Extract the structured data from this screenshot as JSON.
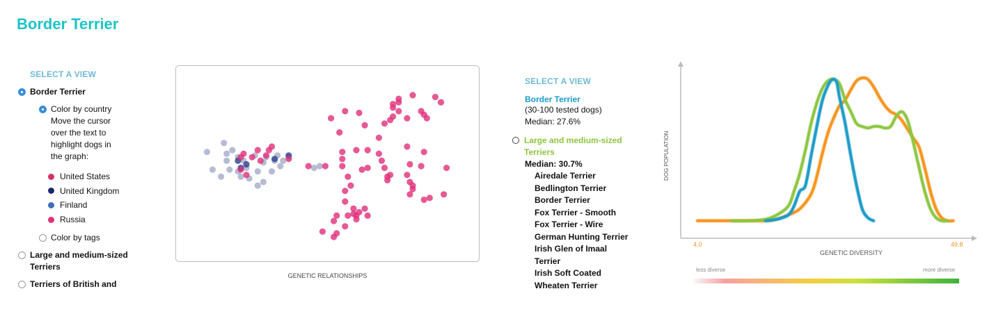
{
  "page_title": "Border Terrier",
  "left": {
    "select_label": "SELECT A VIEW",
    "selected_breed": "Border Terrier",
    "color_by_country": "Color by country",
    "hint": "Move the cursor over the text to highlight dogs in the graph:",
    "countries": [
      {
        "name": "United States",
        "color": "#d6336c"
      },
      {
        "name": "United Kingdom",
        "color": "#1b2a6b"
      },
      {
        "name": "Finland",
        "color": "#3f6fb6"
      },
      {
        "name": "Russia",
        "color": "#e0307a"
      }
    ],
    "color_by_tags": "Color by tags",
    "option_large_terriers": "Large and medium-sized Terriers",
    "option_british": "Terriers of British and"
  },
  "middle": {
    "select_label": "SELECT A VIEW",
    "breed": "Border Terrier",
    "tested": "(30-100 tested dogs)",
    "median": "Median: 27.6%",
    "group_name": "Large and medium-sized Terriers",
    "group_median": "Median: 30.7%",
    "group_breeds": [
      "Airedale Terrier",
      "Bedlington Terrier",
      "Border Terrier",
      "Fox Terrier - Smooth",
      "Fox Terrier - Wire",
      "German Hunting Terrier",
      "Irish Glen of Imaal",
      "Terrier",
      "Irish Soft Coated",
      "Wheaten Terrier"
    ]
  },
  "chart_data": [
    {
      "type": "scatter",
      "xlabel": "GENETIC RELATIONSHIPS",
      "xlim": [
        0,
        100
      ],
      "ylim": [
        0,
        100
      ],
      "colors": {
        "grey": "#aab0cc",
        "pink": "#e0307a",
        "darkblue": "#2d3f8a"
      },
      "points": [
        {
          "x": 7,
          "y": 57,
          "c": "grey"
        },
        {
          "x": 9,
          "y": 47,
          "c": "grey"
        },
        {
          "x": 13,
          "y": 62,
          "c": "grey"
        },
        {
          "x": 14,
          "y": 56,
          "c": "grey"
        },
        {
          "x": 15,
          "y": 47,
          "c": "grey"
        },
        {
          "x": 12,
          "y": 43,
          "c": "grey"
        },
        {
          "x": 16,
          "y": 58,
          "c": "grey"
        },
        {
          "x": 14,
          "y": 52,
          "c": "grey"
        },
        {
          "x": 18,
          "y": 54,
          "c": "grey"
        },
        {
          "x": 19,
          "y": 43,
          "c": "grey"
        },
        {
          "x": 21,
          "y": 48,
          "c": "grey"
        },
        {
          "x": 22,
          "y": 42,
          "c": "grey"
        },
        {
          "x": 18,
          "y": 46,
          "c": "grey"
        },
        {
          "x": 20,
          "y": 52,
          "c": "grey"
        },
        {
          "x": 24,
          "y": 55,
          "c": "grey"
        },
        {
          "x": 25,
          "y": 38,
          "c": "grey"
        },
        {
          "x": 27,
          "y": 40,
          "c": "grey"
        },
        {
          "x": 25,
          "y": 46,
          "c": "grey"
        },
        {
          "x": 27,
          "y": 51,
          "c": "grey"
        },
        {
          "x": 28,
          "y": 54,
          "c": "grey"
        },
        {
          "x": 30,
          "y": 46,
          "c": "grey"
        },
        {
          "x": 32,
          "y": 55,
          "c": "grey"
        },
        {
          "x": 34,
          "y": 52,
          "c": "grey"
        },
        {
          "x": 36,
          "y": 54,
          "c": "grey"
        },
        {
          "x": 33,
          "y": 49,
          "c": "grey"
        },
        {
          "x": 31,
          "y": 52,
          "c": "grey"
        },
        {
          "x": 47,
          "y": 49,
          "c": "grey"
        },
        {
          "x": 45,
          "y": 48,
          "c": "grey"
        },
        {
          "x": 18,
          "y": 52,
          "c": "darkblue"
        },
        {
          "x": 19,
          "y": 48,
          "c": "darkblue"
        },
        {
          "x": 21,
          "y": 50,
          "c": "darkblue"
        },
        {
          "x": 31,
          "y": 53,
          "c": "darkblue"
        },
        {
          "x": 36,
          "y": 55,
          "c": "darkblue"
        },
        {
          "x": 19,
          "y": 54,
          "c": "pink"
        },
        {
          "x": 20,
          "y": 56,
          "c": "pink"
        },
        {
          "x": 19,
          "y": 47,
          "c": "pink"
        },
        {
          "x": 23,
          "y": 54,
          "c": "pink"
        },
        {
          "x": 25,
          "y": 58,
          "c": "pink"
        },
        {
          "x": 28,
          "y": 55,
          "c": "pink"
        },
        {
          "x": 29,
          "y": 58,
          "c": "pink"
        },
        {
          "x": 30,
          "y": 60,
          "c": "pink"
        },
        {
          "x": 26,
          "y": 52,
          "c": "pink"
        },
        {
          "x": 21,
          "y": 44,
          "c": "pink"
        },
        {
          "x": 36,
          "y": 53,
          "c": "pink"
        },
        {
          "x": 43,
          "y": 49,
          "c": "pink"
        },
        {
          "x": 49,
          "y": 49,
          "c": "pink"
        },
        {
          "x": 51,
          "y": 76,
          "c": "pink"
        },
        {
          "x": 54,
          "y": 68,
          "c": "pink"
        },
        {
          "x": 56,
          "y": 80,
          "c": "pink"
        },
        {
          "x": 61,
          "y": 79,
          "c": "pink"
        },
        {
          "x": 63,
          "y": 72,
          "c": "pink"
        },
        {
          "x": 55,
          "y": 57,
          "c": "pink"
        },
        {
          "x": 55,
          "y": 53,
          "c": "pink"
        },
        {
          "x": 55,
          "y": 49,
          "c": "pink"
        },
        {
          "x": 57,
          "y": 43,
          "c": "pink"
        },
        {
          "x": 58,
          "y": 38,
          "c": "pink"
        },
        {
          "x": 56,
          "y": 35,
          "c": "pink"
        },
        {
          "x": 62,
          "y": 47,
          "c": "pink"
        },
        {
          "x": 64,
          "y": 48,
          "c": "pink"
        },
        {
          "x": 64,
          "y": 58,
          "c": "pink"
        },
        {
          "x": 60,
          "y": 58,
          "c": "pink"
        },
        {
          "x": 68,
          "y": 65,
          "c": "pink"
        },
        {
          "x": 68,
          "y": 56,
          "c": "pink"
        },
        {
          "x": 69,
          "y": 52,
          "c": "pink"
        },
        {
          "x": 70,
          "y": 48,
          "c": "pink"
        },
        {
          "x": 70,
          "y": 73,
          "c": "pink"
        },
        {
          "x": 72,
          "y": 75,
          "c": "pink"
        },
        {
          "x": 71,
          "y": 41,
          "c": "pink"
        },
        {
          "x": 71,
          "y": 43,
          "c": "pink"
        },
        {
          "x": 72,
          "y": 44,
          "c": "pink"
        },
        {
          "x": 73,
          "y": 77,
          "c": "pink"
        },
        {
          "x": 73,
          "y": 84,
          "c": "pink"
        },
        {
          "x": 73,
          "y": 82,
          "c": "pink"
        },
        {
          "x": 75,
          "y": 80,
          "c": "pink"
        },
        {
          "x": 75,
          "y": 85,
          "c": "pink"
        },
        {
          "x": 75,
          "y": 87,
          "c": "pink"
        },
        {
          "x": 78,
          "y": 76,
          "c": "pink"
        },
        {
          "x": 80,
          "y": 89,
          "c": "pink"
        },
        {
          "x": 84,
          "y": 78,
          "c": "pink"
        },
        {
          "x": 79,
          "y": 50,
          "c": "pink"
        },
        {
          "x": 78,
          "y": 60,
          "c": "pink"
        },
        {
          "x": 85,
          "y": 76,
          "c": "pink"
        },
        {
          "x": 80,
          "y": 38,
          "c": "pink"
        },
        {
          "x": 79,
          "y": 33,
          "c": "pink"
        },
        {
          "x": 78,
          "y": 44,
          "c": "pink"
        },
        {
          "x": 84,
          "y": 30,
          "c": "pink"
        },
        {
          "x": 79,
          "y": 40,
          "c": "pink"
        },
        {
          "x": 80,
          "y": 36,
          "c": "pink"
        },
        {
          "x": 83,
          "y": 49,
          "c": "pink"
        },
        {
          "x": 84,
          "y": 57,
          "c": "pink"
        },
        {
          "x": 86,
          "y": 31,
          "c": "pink"
        },
        {
          "x": 91,
          "y": 33,
          "c": "pink"
        },
        {
          "x": 92,
          "y": 48,
          "c": "pink"
        },
        {
          "x": 56,
          "y": 29,
          "c": "pink"
        },
        {
          "x": 59,
          "y": 25,
          "c": "pink"
        },
        {
          "x": 59,
          "y": 22,
          "c": "pink"
        },
        {
          "x": 60,
          "y": 21,
          "c": "pink"
        },
        {
          "x": 61,
          "y": 23,
          "c": "pink"
        },
        {
          "x": 57,
          "y": 21,
          "c": "pink"
        },
        {
          "x": 53,
          "y": 21,
          "c": "pink"
        },
        {
          "x": 52,
          "y": 18,
          "c": "pink"
        },
        {
          "x": 56,
          "y": 15,
          "c": "pink"
        },
        {
          "x": 53,
          "y": 11,
          "c": "pink"
        },
        {
          "x": 48,
          "y": 12,
          "c": "pink"
        },
        {
          "x": 52,
          "y": 9,
          "c": "pink"
        },
        {
          "x": 60,
          "y": 19,
          "c": "pink"
        },
        {
          "x": 64,
          "y": 21,
          "c": "pink"
        },
        {
          "x": 63,
          "y": 25,
          "c": "pink"
        },
        {
          "x": 90,
          "y": 85,
          "c": "pink"
        },
        {
          "x": 88,
          "y": 88,
          "c": "pink"
        },
        {
          "x": 83,
          "y": 80,
          "c": "pink"
        }
      ]
    },
    {
      "type": "line",
      "xlabel": "GENETIC DIVERSITY",
      "ylabel": "DOG POPULATION",
      "xlim": [
        4.0,
        49.8
      ],
      "ylim": [
        0,
        100
      ],
      "x_tick_labels": [
        "4.0",
        "49.8"
      ],
      "scale_labels": {
        "left": "less diverse",
        "right": "more diverse"
      },
      "series": [
        {
          "color": "#f7941d",
          "points": [
            [
              4,
              2
            ],
            [
              8,
              2
            ],
            [
              12,
              2
            ],
            [
              16,
              2
            ],
            [
              18,
              3
            ],
            [
              20,
              6
            ],
            [
              22,
              10
            ],
            [
              24,
              20
            ],
            [
              25,
              32
            ],
            [
              26,
              48
            ],
            [
              27,
              62
            ],
            [
              28,
              72
            ],
            [
              29,
              80
            ],
            [
              30,
              84
            ],
            [
              31,
              91
            ],
            [
              32,
              97
            ],
            [
              33,
              99
            ],
            [
              34,
              98
            ],
            [
              35,
              93
            ],
            [
              36,
              86
            ],
            [
              37,
              80
            ],
            [
              38,
              76
            ],
            [
              39,
              74
            ],
            [
              40,
              70
            ],
            [
              41,
              64
            ],
            [
              42,
              58
            ],
            [
              43,
              52
            ],
            [
              44,
              38
            ],
            [
              45,
              22
            ],
            [
              46,
              10
            ],
            [
              47,
              4
            ],
            [
              48,
              2
            ],
            [
              49,
              2
            ]
          ]
        },
        {
          "color": "#8cc63f",
          "points": [
            [
              10,
              2
            ],
            [
              13,
              2
            ],
            [
              16,
              3
            ],
            [
              18,
              6
            ],
            [
              20,
              12
            ],
            [
              21,
              22
            ],
            [
              22,
              34
            ],
            [
              23,
              50
            ],
            [
              24,
              68
            ],
            [
              25,
              82
            ],
            [
              26,
              92
            ],
            [
              27,
              97
            ],
            [
              28,
              98
            ],
            [
              29,
              95
            ],
            [
              30,
              84
            ],
            [
              31,
              76
            ],
            [
              32,
              68
            ],
            [
              33,
              66
            ],
            [
              34,
              65
            ],
            [
              35,
              66
            ],
            [
              36,
              66
            ],
            [
              37,
              65
            ],
            [
              38,
              66
            ],
            [
              39,
              73
            ],
            [
              40,
              76
            ],
            [
              41,
              70
            ],
            [
              42,
              55
            ],
            [
              43,
              38
            ],
            [
              44,
              22
            ],
            [
              45,
              10
            ],
            [
              46,
              4
            ],
            [
              47,
              2
            ],
            [
              48,
              2
            ]
          ]
        },
        {
          "color": "#1a9bc8",
          "points": [
            [
              16,
              2
            ],
            [
              18,
              3
            ],
            [
              20,
              6
            ],
            [
              21,
              12
            ],
            [
              22,
              22
            ],
            [
              23,
              26
            ],
            [
              24,
              46
            ],
            [
              25,
              66
            ],
            [
              26,
              84
            ],
            [
              27,
              94
            ],
            [
              27.8,
              98
            ],
            [
              28.5,
              96
            ],
            [
              29,
              86
            ],
            [
              30,
              68
            ],
            [
              31,
              46
            ],
            [
              32,
              26
            ],
            [
              33,
              10
            ],
            [
              34,
              4
            ],
            [
              35,
              2
            ]
          ]
        }
      ]
    }
  ]
}
